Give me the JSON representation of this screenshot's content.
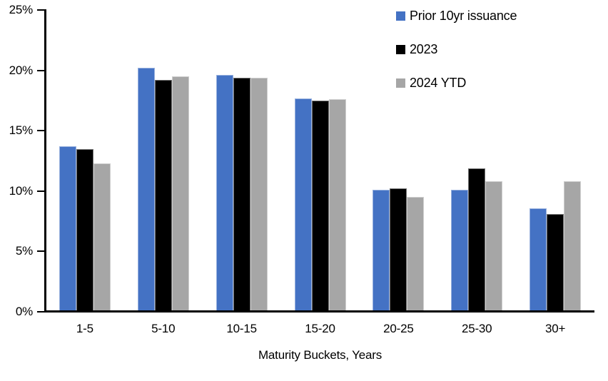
{
  "chart_data": {
    "type": "bar",
    "title": "",
    "categories": [
      "1-5",
      "5-10",
      "10-15",
      "15-20",
      "20-25",
      "25-30",
      "30+"
    ],
    "series": [
      {
        "name": "Prior 10yr issuance",
        "color": "#4472C4",
        "values": [
          13.7,
          20.2,
          19.6,
          17.7,
          10.1,
          10.1,
          8.6
        ]
      },
      {
        "name": "2023",
        "color": "#000000",
        "values": [
          13.5,
          19.2,
          19.4,
          17.5,
          10.2,
          11.9,
          8.1
        ]
      },
      {
        "name": "2024 YTD",
        "color": "#A6A6A6",
        "values": [
          12.3,
          19.5,
          19.4,
          17.6,
          9.5,
          10.8,
          10.8
        ]
      }
    ],
    "xlabel": "Maturity Buckets, Years",
    "ylabel": "",
    "ylim": [
      0,
      25
    ],
    "ytick_step": 5,
    "ytick_labels": [
      "0%",
      "5%",
      "10%",
      "15%",
      "20%",
      "25%"
    ],
    "legend": {
      "position": "top-right",
      "orientation": "vertical"
    },
    "grid": false,
    "axis_color": "#000000",
    "text_color": "#000000",
    "background": "#FFFFFF"
  }
}
